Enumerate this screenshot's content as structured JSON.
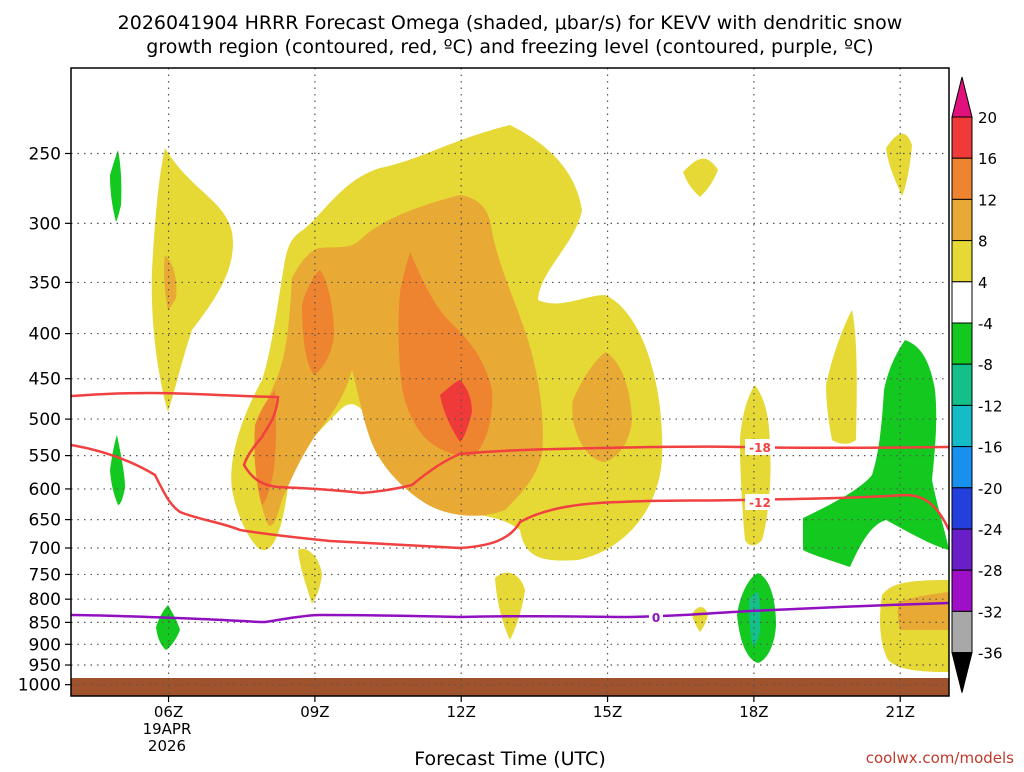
{
  "chart_data": {
    "type": "heatmap",
    "title_line1": "2026041904 HRRR Forecast Omega (shaded, μbar/s) for KEVV with dendritic snow",
    "title_line2": "growth region (contoured, red, ºC) and freezing level (contoured, purple, ºC)",
    "xlabel": "Forecast Time (UTC)",
    "x_ticks": [
      "06Z",
      "09Z",
      "12Z",
      "15Z",
      "18Z",
      "21Z"
    ],
    "x_tick_hours": [
      6,
      9,
      12,
      15,
      18,
      21
    ],
    "x_date_line1": "19APR",
    "x_date_line2": "2026",
    "xlim_hours": [
      4.0,
      22.0
    ],
    "y_ticks": [
      "250",
      "300",
      "350",
      "400",
      "450",
      "500",
      "550",
      "600",
      "650",
      "700",
      "750",
      "800",
      "850",
      "900",
      "950",
      "1000"
    ],
    "y_tick_values": [
      250,
      300,
      350,
      400,
      450,
      500,
      550,
      600,
      650,
      700,
      750,
      800,
      850,
      900,
      950,
      1000
    ],
    "ylim_hPa": [
      200,
      1030
    ],
    "colorbar": {
      "labels": [
        "20",
        "16",
        "12",
        "8",
        "4",
        "-4",
        "-8",
        "-12",
        "-16",
        "-20",
        "-24",
        "-28",
        "-32",
        "-36"
      ],
      "colors": [
        "#f03a3a",
        "#ee8430",
        "#e8aa35",
        "#e6d835",
        "#ffffff",
        "#13c81e",
        "#13c08a",
        "#13bcc6",
        "#1890ee",
        "#2440dc",
        "#6a1ec8",
        "#9f0fc8",
        "#a8a8a8"
      ],
      "top_color": "#e0107c",
      "bottom_color": "#000000"
    },
    "contours": [
      {
        "label": "-18",
        "color": "#f04040",
        "variable": "temperature",
        "units": "ºC"
      },
      {
        "label": "-12",
        "color": "#f04040",
        "variable": "temperature",
        "units": "ºC"
      },
      {
        "label": "0",
        "color": "#9010c0",
        "variable": "freezing level",
        "units": "ºC"
      }
    ],
    "omega_levels": {
      "yellow": 4,
      "gold": 8,
      "orange": 12,
      "red": 16,
      "green": -4
    },
    "ground_color": "#a0522d",
    "watermark": "coolwx.com/models"
  }
}
